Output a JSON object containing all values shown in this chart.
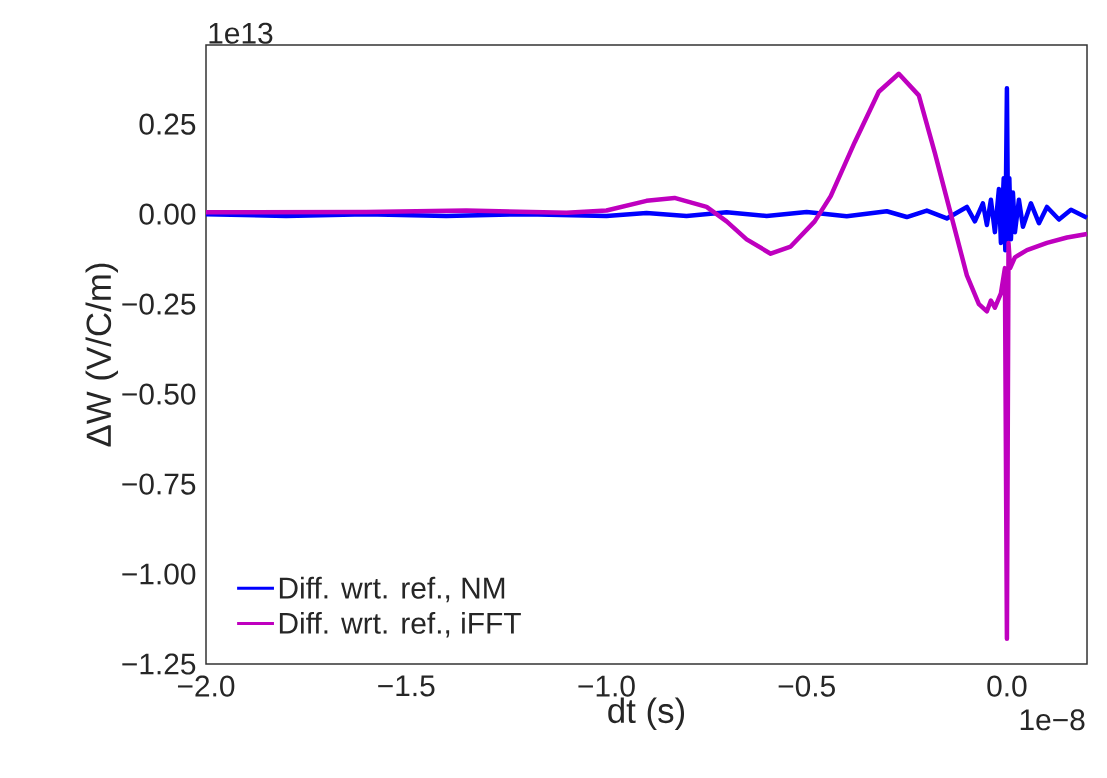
{
  "chart_data": {
    "type": "line",
    "xlabel": "dt (s)",
    "ylabel": "ΔW (V/C/m)",
    "xlim": [
      -2.0,
      0.2
    ],
    "ylim": [
      -1.25,
      0.47
    ],
    "xticks": [
      {
        "value": -2.0,
        "label": "−2.0"
      },
      {
        "value": -1.5,
        "label": "−1.5"
      },
      {
        "value": -1.0,
        "label": "−1.0"
      },
      {
        "value": -0.5,
        "label": "−0.5"
      },
      {
        "value": 0.0,
        "label": "0.0"
      }
    ],
    "yticks": [
      {
        "value": -1.25,
        "label": "−1.25"
      },
      {
        "value": -1.0,
        "label": "−1.00"
      },
      {
        "value": -0.75,
        "label": "−0.75"
      },
      {
        "value": -0.5,
        "label": "−0.50"
      },
      {
        "value": -0.25,
        "label": "−0.25"
      },
      {
        "value": 0.0,
        "label": "0.00"
      },
      {
        "value": 0.25,
        "label": "0.25"
      }
    ],
    "annotations": [
      "1e13",
      "1e−8"
    ],
    "grid": false,
    "legend": "bottom left",
    "marker": "none",
    "line_style": "solid",
    "series": [
      {
        "name": "Diff. wrt. ref., NM",
        "color": "#0000ff",
        "x": [
          -2.0,
          -1.8,
          -1.6,
          -1.4,
          -1.2,
          -1.0,
          -0.9,
          -0.8,
          -0.7,
          -0.6,
          -0.5,
          -0.4,
          -0.3,
          -0.25,
          -0.2,
          -0.15,
          -0.1,
          -0.08,
          -0.06,
          -0.05,
          -0.04,
          -0.03,
          -0.02,
          -0.015,
          -0.008,
          -0.004,
          0.0,
          0.003,
          0.006,
          0.01,
          0.015,
          0.02,
          0.03,
          0.04,
          0.06,
          0.08,
          0.1,
          0.13,
          0.16,
          0.2
        ],
        "values": [
          0.0,
          -0.005,
          0.0,
          -0.005,
          0.0,
          -0.005,
          0.003,
          -0.005,
          0.005,
          -0.005,
          0.006,
          -0.006,
          0.008,
          -0.008,
          0.01,
          -0.012,
          0.02,
          -0.02,
          0.03,
          -0.03,
          0.04,
          -0.05,
          0.07,
          -0.08,
          0.1,
          -0.1,
          0.35,
          -0.07,
          0.1,
          -0.07,
          0.06,
          -0.05,
          0.04,
          -0.035,
          0.03,
          -0.025,
          0.02,
          -0.015,
          0.012,
          -0.01
        ]
      },
      {
        "name": "Diff. wrt. ref., iFFT",
        "color": "#bf00bf",
        "x": [
          -2.0,
          -1.6,
          -1.35,
          -1.1,
          -1.0,
          -0.9,
          -0.83,
          -0.75,
          -0.7,
          -0.65,
          -0.59,
          -0.54,
          -0.48,
          -0.44,
          -0.38,
          -0.32,
          -0.27,
          -0.22,
          -0.18,
          -0.14,
          -0.1,
          -0.07,
          -0.05,
          -0.04,
          -0.03,
          -0.015,
          -0.005,
          0.0,
          0.004,
          0.008,
          0.02,
          0.05,
          0.1,
          0.15,
          0.2
        ],
        "values": [
          0.005,
          0.006,
          0.01,
          0.004,
          0.01,
          0.037,
          0.045,
          0.02,
          -0.02,
          -0.07,
          -0.11,
          -0.09,
          -0.02,
          0.05,
          0.2,
          0.34,
          0.39,
          0.33,
          0.17,
          0.0,
          -0.17,
          -0.25,
          -0.27,
          -0.24,
          -0.26,
          -0.22,
          -0.15,
          -1.18,
          -0.08,
          -0.15,
          -0.12,
          -0.1,
          -0.08,
          -0.065,
          -0.055
        ]
      }
    ]
  }
}
